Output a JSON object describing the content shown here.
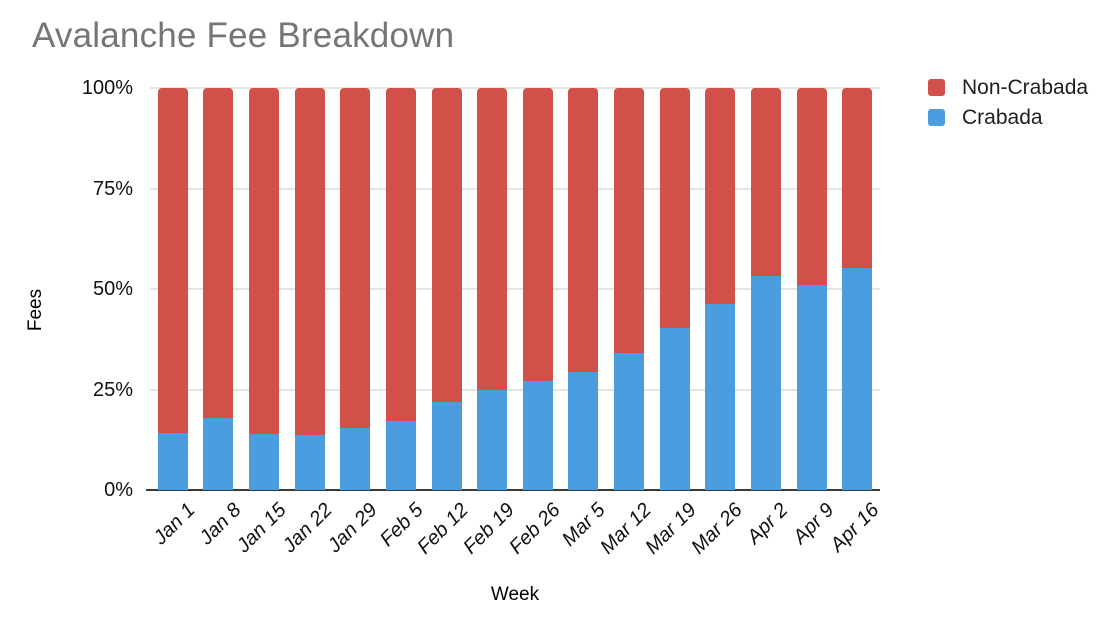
{
  "title": "Avalanche Fee Breakdown",
  "axes": {
    "y_title": "Fees",
    "x_title": "Week",
    "y_tick_labels": [
      "100%",
      "75%",
      "50%",
      "25%",
      "0%"
    ]
  },
  "legend": {
    "items": [
      {
        "label": "Non-Crabada",
        "color": "#d1514a"
      },
      {
        "label": "Crabada",
        "color": "#4a9ddf"
      }
    ]
  },
  "colors": {
    "non_crabada": "#d1514a",
    "crabada": "#4a9ddf",
    "gridline": "#e4e4e4",
    "baseline": "#3a3a3a",
    "title_text": "#757575"
  },
  "chart_data": {
    "type": "bar",
    "stacked": true,
    "stack_mode": "percent",
    "title": "Avalanche Fee Breakdown",
    "xlabel": "Week",
    "ylabel": "Fees",
    "ylim": [
      0,
      100
    ],
    "y_ticks_percent": [
      0,
      25,
      50,
      75,
      100
    ],
    "grid": true,
    "legend_position": "top-right",
    "categories": [
      "Jan 1",
      "Jan 8",
      "Jan 15",
      "Jan 22",
      "Jan 29",
      "Feb 5",
      "Feb 12",
      "Feb 19",
      "Feb 26",
      "Mar 5",
      "Mar 12",
      "Mar 19",
      "Mar 26",
      "Apr 2",
      "Apr 9",
      "Apr 16"
    ],
    "series": [
      {
        "name": "Non-Crabada",
        "color": "#d1514a",
        "values": [
          85.7,
          82.2,
          86.0,
          86.4,
          84.6,
          82.9,
          78.0,
          75.2,
          73.0,
          70.6,
          66.0,
          59.7,
          53.8,
          46.8,
          49.0,
          44.7
        ]
      },
      {
        "name": "Crabada",
        "color": "#4a9ddf",
        "values": [
          14.3,
          17.8,
          14.0,
          13.6,
          15.4,
          17.1,
          22.0,
          24.8,
          27.0,
          29.4,
          34.0,
          40.3,
          46.2,
          53.2,
          51.0,
          55.3
        ]
      }
    ]
  }
}
